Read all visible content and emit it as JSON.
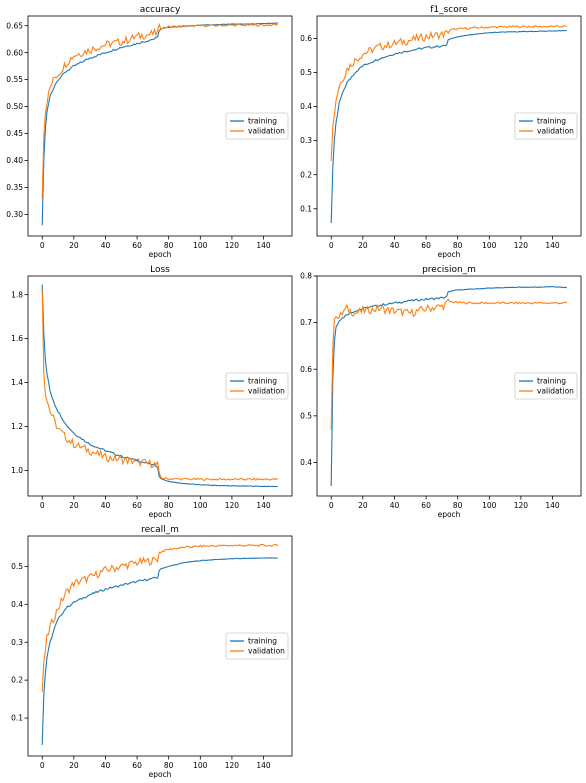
{
  "colors": {
    "training": "#1f77b4",
    "validation": "#ff7f0e"
  },
  "chart_data": [
    {
      "id": "accuracy",
      "type": "line",
      "title": "accuracy",
      "xlabel": "epoch",
      "ylabel": "",
      "xlim": [
        -9,
        158
      ],
      "ylim": [
        0.26,
        0.668
      ],
      "xticks": [
        "0",
        "20",
        "40",
        "60",
        "80",
        "100",
        "120",
        "140"
      ],
      "yticks": [
        "0.30",
        "0.35",
        "0.40",
        "0.45",
        "0.50",
        "0.55",
        "0.60",
        "0.65"
      ],
      "legend": "center-right",
      "series": [
        {
          "name": "training",
          "x": [
            0,
            1,
            2,
            3,
            5,
            8,
            10,
            15,
            20,
            30,
            40,
            50,
            60,
            70,
            73,
            74,
            76,
            80,
            90,
            100,
            110,
            120,
            130,
            140,
            149
          ],
          "values": [
            0.28,
            0.4,
            0.46,
            0.49,
            0.52,
            0.54,
            0.55,
            0.565,
            0.575,
            0.59,
            0.6,
            0.61,
            0.617,
            0.625,
            0.628,
            0.642,
            0.645,
            0.647,
            0.649,
            0.651,
            0.652,
            0.653,
            0.653,
            0.654,
            0.655
          ]
        },
        {
          "name": "validation",
          "x": [
            0,
            1,
            2,
            3,
            5,
            8,
            10,
            15,
            20,
            30,
            40,
            50,
            60,
            70,
            73,
            74,
            76,
            80,
            90,
            100,
            110,
            120,
            130,
            140,
            149
          ],
          "values": [
            0.335,
            0.45,
            0.49,
            0.51,
            0.535,
            0.555,
            0.56,
            0.58,
            0.595,
            0.605,
            0.615,
            0.62,
            0.63,
            0.635,
            0.637,
            0.645,
            0.646,
            0.648,
            0.649,
            0.65,
            0.65,
            0.651,
            0.651,
            0.651,
            0.652
          ]
        }
      ]
    },
    {
      "id": "f1_score",
      "type": "line",
      "title": "f1_score",
      "xlabel": "epoch",
      "ylabel": "",
      "xlim": [
        -9,
        158
      ],
      "ylim": [
        0.02,
        0.666
      ],
      "xticks": [
        "0",
        "20",
        "40",
        "60",
        "80",
        "100",
        "120",
        "140"
      ],
      "yticks": [
        "0.1",
        "0.2",
        "0.3",
        "0.4",
        "0.5",
        "0.6"
      ],
      "legend": "center-right",
      "series": [
        {
          "name": "training",
          "x": [
            0,
            1,
            2,
            3,
            5,
            8,
            10,
            15,
            20,
            30,
            40,
            50,
            60,
            70,
            73,
            74,
            76,
            80,
            90,
            100,
            110,
            120,
            130,
            140,
            149
          ],
          "values": [
            0.06,
            0.22,
            0.3,
            0.35,
            0.41,
            0.45,
            0.47,
            0.5,
            0.52,
            0.54,
            0.555,
            0.565,
            0.573,
            0.578,
            0.58,
            0.595,
            0.6,
            0.605,
            0.612,
            0.617,
            0.619,
            0.62,
            0.621,
            0.622,
            0.623
          ]
        },
        {
          "name": "validation",
          "x": [
            0,
            1,
            2,
            3,
            5,
            8,
            10,
            15,
            20,
            30,
            40,
            50,
            60,
            70,
            73,
            74,
            76,
            80,
            90,
            100,
            110,
            120,
            130,
            140,
            149
          ],
          "values": [
            0.25,
            0.34,
            0.38,
            0.42,
            0.46,
            0.49,
            0.51,
            0.535,
            0.555,
            0.575,
            0.585,
            0.595,
            0.605,
            0.612,
            0.615,
            0.623,
            0.626,
            0.628,
            0.631,
            0.633,
            0.634,
            0.635,
            0.635,
            0.635,
            0.635
          ]
        }
      ]
    },
    {
      "id": "loss",
      "type": "line",
      "title": "Loss",
      "xlabel": "epoch",
      "ylabel": "",
      "xlim": [
        -9,
        158
      ],
      "ylim": [
        0.884,
        1.885
      ],
      "xticks": [
        "0",
        "20",
        "40",
        "60",
        "80",
        "100",
        "120",
        "140"
      ],
      "yticks": [
        "1.0",
        "1.2",
        "1.4",
        "1.6",
        "1.8"
      ],
      "legend": "center-right",
      "series": [
        {
          "name": "training",
          "x": [
            0,
            1,
            2,
            3,
            5,
            8,
            10,
            15,
            20,
            30,
            40,
            50,
            60,
            70,
            73,
            74,
            76,
            80,
            90,
            100,
            110,
            120,
            130,
            140,
            149
          ],
          "values": [
            1.85,
            1.62,
            1.5,
            1.44,
            1.36,
            1.3,
            1.27,
            1.21,
            1.17,
            1.12,
            1.09,
            1.065,
            1.045,
            1.025,
            1.02,
            0.97,
            0.96,
            0.95,
            0.94,
            0.935,
            0.932,
            0.93,
            0.929,
            0.928,
            0.927
          ]
        },
        {
          "name": "validation",
          "x": [
            0,
            1,
            2,
            3,
            5,
            8,
            10,
            15,
            20,
            30,
            40,
            50,
            60,
            70,
            73,
            74,
            76,
            80,
            90,
            100,
            110,
            120,
            130,
            140,
            149
          ],
          "values": [
            1.84,
            1.45,
            1.36,
            1.32,
            1.27,
            1.22,
            1.19,
            1.15,
            1.12,
            1.09,
            1.06,
            1.05,
            1.04,
            1.03,
            1.025,
            0.975,
            0.965,
            0.962,
            0.961,
            0.96,
            0.96,
            0.96,
            0.96,
            0.96,
            0.96
          ]
        }
      ]
    },
    {
      "id": "precision_m",
      "type": "line",
      "title": "precision_m",
      "xlabel": "epoch",
      "ylabel": "",
      "xlim": [
        -9,
        158
      ],
      "ylim": [
        0.328,
        0.8
      ],
      "xticks": [
        "0",
        "20",
        "40",
        "60",
        "80",
        "100",
        "120",
        "140"
      ],
      "yticks": [
        "0.4",
        "0.5",
        "0.6",
        "0.7",
        "0.8"
      ],
      "legend": "center-right",
      "series": [
        {
          "name": "training",
          "x": [
            0,
            1,
            2,
            3,
            5,
            8,
            10,
            15,
            20,
            30,
            40,
            50,
            60,
            70,
            73,
            74,
            76,
            80,
            90,
            100,
            110,
            120,
            130,
            140,
            149
          ],
          "values": [
            0.35,
            0.58,
            0.66,
            0.69,
            0.705,
            0.712,
            0.718,
            0.725,
            0.73,
            0.737,
            0.742,
            0.747,
            0.75,
            0.753,
            0.755,
            0.765,
            0.768,
            0.77,
            0.772,
            0.774,
            0.775,
            0.776,
            0.776,
            0.777,
            0.775
          ]
        },
        {
          "name": "validation",
          "x": [
            0,
            1,
            2,
            3,
            5,
            8,
            10,
            15,
            20,
            30,
            40,
            50,
            60,
            70,
            73,
            74,
            76,
            80,
            90,
            100,
            110,
            120,
            130,
            140,
            149
          ],
          "values": [
            0.47,
            0.65,
            0.7,
            0.72,
            0.71,
            0.725,
            0.73,
            0.72,
            0.725,
            0.73,
            0.725,
            0.72,
            0.73,
            0.735,
            0.74,
            0.745,
            0.745,
            0.743,
            0.742,
            0.742,
            0.742,
            0.742,
            0.742,
            0.742,
            0.742
          ]
        }
      ]
    },
    {
      "id": "recall_m",
      "type": "line",
      "title": "recall_m",
      "xlabel": "epoch",
      "ylabel": "",
      "xlim": [
        -9,
        158
      ],
      "ylim": [
        0.0,
        0.58
      ],
      "xticks": [
        "0",
        "20",
        "40",
        "60",
        "80",
        "100",
        "120",
        "140"
      ],
      "yticks": [
        "0.1",
        "0.2",
        "0.3",
        "0.4",
        "0.5"
      ],
      "legend": "center-right",
      "series": [
        {
          "name": "training",
          "x": [
            0,
            1,
            2,
            3,
            5,
            8,
            10,
            15,
            20,
            30,
            40,
            50,
            60,
            70,
            73,
            74,
            76,
            80,
            90,
            100,
            110,
            120,
            130,
            140,
            149
          ],
          "values": [
            0.03,
            0.16,
            0.22,
            0.26,
            0.3,
            0.34,
            0.36,
            0.39,
            0.405,
            0.425,
            0.44,
            0.45,
            0.46,
            0.468,
            0.47,
            0.49,
            0.495,
            0.5,
            0.51,
            0.515,
            0.518,
            0.52,
            0.521,
            0.522,
            0.522
          ]
        },
        {
          "name": "validation",
          "x": [
            0,
            1,
            2,
            3,
            5,
            8,
            10,
            15,
            20,
            30,
            40,
            50,
            60,
            70,
            73,
            74,
            76,
            80,
            90,
            100,
            110,
            120,
            130,
            140,
            149
          ],
          "values": [
            0.17,
            0.24,
            0.28,
            0.31,
            0.34,
            0.37,
            0.39,
            0.43,
            0.455,
            0.47,
            0.49,
            0.5,
            0.51,
            0.515,
            0.52,
            0.535,
            0.54,
            0.545,
            0.55,
            0.553,
            0.554,
            0.555,
            0.555,
            0.555,
            0.555
          ]
        }
      ]
    }
  ]
}
